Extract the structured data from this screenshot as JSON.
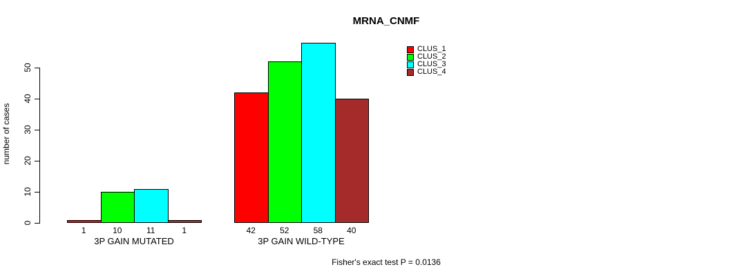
{
  "chart_data": {
    "type": "bar",
    "title": "MRNA_CNMF",
    "xlabel": "",
    "ylabel": "number of cases",
    "categories": [
      "3P GAIN MUTATED",
      "3P GAIN WILD-TYPE"
    ],
    "series": [
      {
        "name": "CLUS_1",
        "color": "#ff0000",
        "values": [
          1,
          42
        ]
      },
      {
        "name": "CLUS_2",
        "color": "#00ff00",
        "values": [
          10,
          52
        ]
      },
      {
        "name": "CLUS_3",
        "color": "#00ffff",
        "values": [
          11,
          58
        ]
      },
      {
        "name": "CLUS_4",
        "color": "#a52a2a",
        "values": [
          1,
          40
        ]
      }
    ],
    "bar_labels": [
      [
        "1",
        "10",
        "11",
        "1"
      ],
      [
        "42",
        "52",
        "58",
        "40"
      ]
    ],
    "yticks": [
      0,
      10,
      20,
      30,
      40,
      50
    ],
    "ylim": [
      0,
      58
    ],
    "grid": false,
    "legend_position": "top-right",
    "annotation": "Fisher's exact test P = 0.0136",
    "colors": {
      "axis": "#000000",
      "text": "#000000",
      "background": "#ffffff"
    }
  }
}
